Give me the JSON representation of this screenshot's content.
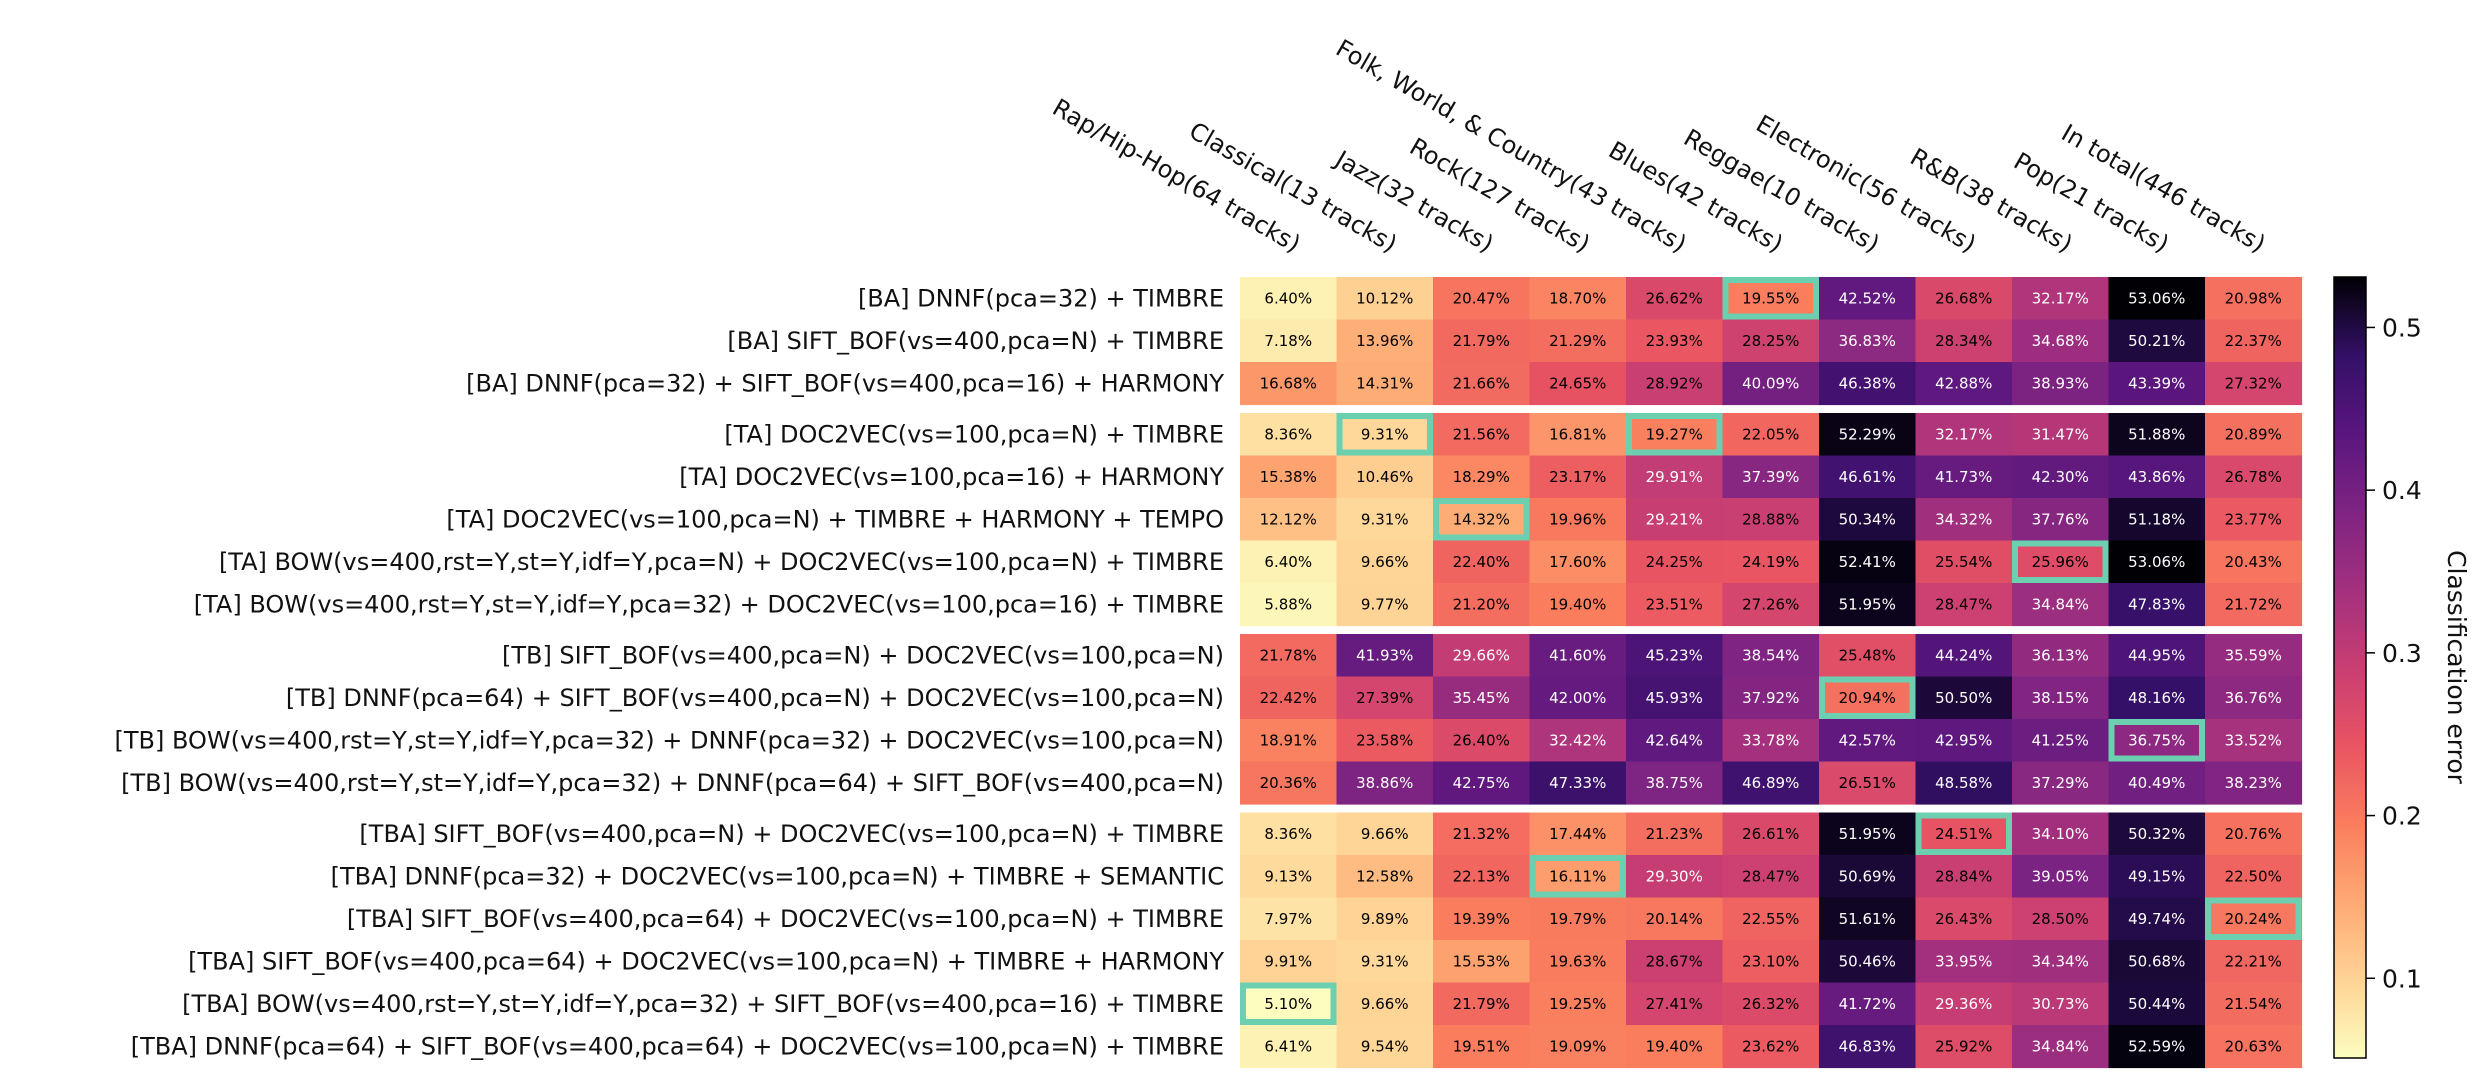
{
  "chart_data": {
    "type": "heatmap",
    "columns": [
      "Rap/Hip-Hop(64 tracks)",
      "Classical(13 tracks)",
      "Jazz(32 tracks)",
      "Rock(127 tracks)",
      "Folk, World, & Country(43 tracks)",
      "Blues(42 tracks)",
      "Reggae(10 tracks)",
      "Electronic(56 tracks)",
      "R&B(38 tracks)",
      "Pop(21 tracks)",
      "In total(446 tracks)"
    ],
    "rows": [
      "[BA] DNNF(pca=32) + TIMBRE",
      "[BA] SIFT_BOF(vs=400,pca=N) + TIMBRE",
      "[BA] DNNF(pca=32) + SIFT_BOF(vs=400,pca=16) + HARMONY",
      "[TA] DOC2VEC(vs=100,pca=N) + TIMBRE",
      "[TA] DOC2VEC(vs=100,pca=16) + HARMONY",
      "[TA] DOC2VEC(vs=100,pca=N) + TIMBRE + HARMONY + TEMPO",
      "[TA] BOW(vs=400,rst=Y,st=Y,idf=Y,pca=N) + DOC2VEC(vs=100,pca=N) + TIMBRE",
      "[TA] BOW(vs=400,rst=Y,st=Y,idf=Y,pca=32) + DOC2VEC(vs=100,pca=16) + TIMBRE",
      "[TB] SIFT_BOF(vs=400,pca=N) + DOC2VEC(vs=100,pca=N)",
      "[TB] DNNF(pca=64) + SIFT_BOF(vs=400,pca=N) + DOC2VEC(vs=100,pca=N)",
      "[TB] BOW(vs=400,rst=Y,st=Y,idf=Y,pca=32) + DNNF(pca=32) + DOC2VEC(vs=100,pca=N)",
      "[TB] BOW(vs=400,rst=Y,st=Y,idf=Y,pca=32) + DNNF(pca=64) + SIFT_BOF(vs=400,pca=N)",
      "[TBA] SIFT_BOF(vs=400,pca=N) + DOC2VEC(vs=100,pca=N) + TIMBRE",
      "[TBA] DNNF(pca=32) + DOC2VEC(vs=100,pca=N) + TIMBRE + SEMANTIC",
      "[TBA] SIFT_BOF(vs=400,pca=64) + DOC2VEC(vs=100,pca=N) + TIMBRE",
      "[TBA] SIFT_BOF(vs=400,pca=64) + DOC2VEC(vs=100,pca=N) + TIMBRE + HARMONY",
      "[TBA] BOW(vs=400,rst=Y,st=Y,idf=Y,pca=32) + SIFT_BOF(vs=400,pca=16) + TIMBRE",
      "[TBA] DNNF(pca=64) + SIFT_BOF(vs=400,pca=64) + DOC2VEC(vs=100,pca=N) + TIMBRE"
    ],
    "groups": [
      [
        0,
        2
      ],
      [
        3,
        7
      ],
      [
        8,
        11
      ],
      [
        12,
        17
      ]
    ],
    "values": [
      [
        6.4,
        10.12,
        20.47,
        18.7,
        26.62,
        19.55,
        42.52,
        26.68,
        32.17,
        53.06,
        20.98
      ],
      [
        7.18,
        13.96,
        21.79,
        21.29,
        23.93,
        28.25,
        36.83,
        28.34,
        34.68,
        50.21,
        22.37
      ],
      [
        16.68,
        14.31,
        21.66,
        24.65,
        28.92,
        40.09,
        46.38,
        42.88,
        38.93,
        43.39,
        27.32
      ],
      [
        8.36,
        9.31,
        21.56,
        16.81,
        19.27,
        22.05,
        52.29,
        32.17,
        31.47,
        51.88,
        20.89
      ],
      [
        15.38,
        10.46,
        18.29,
        23.17,
        29.91,
        37.39,
        46.61,
        41.73,
        42.3,
        43.86,
        26.78
      ],
      [
        12.12,
        9.31,
        14.32,
        19.96,
        29.21,
        28.88,
        50.34,
        34.32,
        37.76,
        51.18,
        23.77
      ],
      [
        6.4,
        9.66,
        22.4,
        17.6,
        24.25,
        24.19,
        52.41,
        25.54,
        25.96,
        53.06,
        20.43
      ],
      [
        5.88,
        9.77,
        21.2,
        19.4,
        23.51,
        27.26,
        51.95,
        28.47,
        34.84,
        47.83,
        21.72
      ],
      [
        21.78,
        41.93,
        29.66,
        41.6,
        45.23,
        38.54,
        25.48,
        44.24,
        36.13,
        44.95,
        35.59
      ],
      [
        22.42,
        27.39,
        35.45,
        42.0,
        45.93,
        37.92,
        20.94,
        50.5,
        38.15,
        48.16,
        36.76
      ],
      [
        18.91,
        23.58,
        26.4,
        32.42,
        42.64,
        33.78,
        42.57,
        42.95,
        41.25,
        36.75,
        33.52
      ],
      [
        20.36,
        38.86,
        42.75,
        47.33,
        38.75,
        46.89,
        26.51,
        48.58,
        37.29,
        40.49,
        38.23
      ],
      [
        8.36,
        9.66,
        21.32,
        17.44,
        21.23,
        26.61,
        51.95,
        24.51,
        34.1,
        50.32,
        20.76
      ],
      [
        9.13,
        12.58,
        22.13,
        16.11,
        29.3,
        28.47,
        50.69,
        28.84,
        39.05,
        49.15,
        22.5
      ],
      [
        7.97,
        9.89,
        19.39,
        19.79,
        20.14,
        22.55,
        51.61,
        26.43,
        28.5,
        49.74,
        20.24
      ],
      [
        9.91,
        9.31,
        15.53,
        19.63,
        28.67,
        23.1,
        50.46,
        33.95,
        34.34,
        50.68,
        22.21
      ],
      [
        5.1,
        9.66,
        21.79,
        19.25,
        27.41,
        26.32,
        41.72,
        29.36,
        30.73,
        50.44,
        21.54
      ],
      [
        6.41,
        9.54,
        19.51,
        19.09,
        19.4,
        23.62,
        46.83,
        25.92,
        34.84,
        52.59,
        20.63
      ]
    ],
    "highlighted_cells": [
      [
        0,
        5
      ],
      [
        3,
        1
      ],
      [
        3,
        4
      ],
      [
        5,
        2
      ],
      [
        6,
        8
      ],
      [
        9,
        6
      ],
      [
        10,
        9
      ],
      [
        12,
        7
      ],
      [
        13,
        3
      ],
      [
        14,
        10
      ],
      [
        16,
        0
      ]
    ],
    "highlight_color": "#6ccfb0",
    "colormap": "magma_r",
    "colorbar": {
      "label": "Classification error",
      "range": [
        0.051,
        0.531
      ],
      "ticks": [
        0.1,
        0.2,
        0.3,
        0.4,
        0.5
      ],
      "tick_labels": [
        "0.1",
        "0.2",
        "0.3",
        "0.4",
        "0.5"
      ]
    }
  }
}
